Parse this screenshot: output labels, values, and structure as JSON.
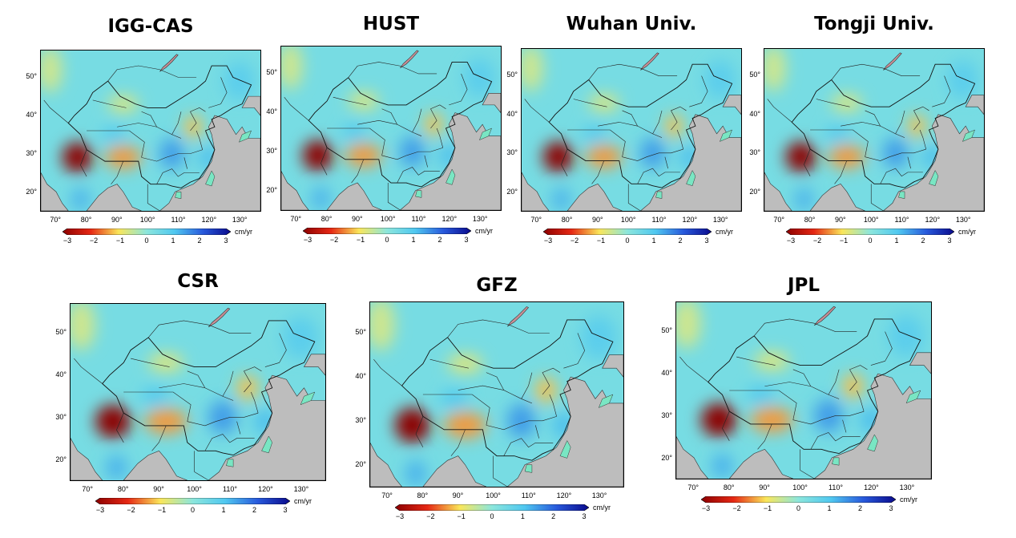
{
  "panels": [
    {
      "title": "IGG-CAS"
    },
    {
      "title": "HUST"
    },
    {
      "title": "Wuhan Univ."
    },
    {
      "title": "Tongji Univ."
    },
    {
      "title": "CSR"
    },
    {
      "title": "GFZ"
    },
    {
      "title": "JPL"
    }
  ],
  "lon_ticks": [
    "70°",
    "80°",
    "90°",
    "100°",
    "110°",
    "120°",
    "130°"
  ],
  "lat_ticks": [
    "50°",
    "40°",
    "30°",
    "20°"
  ],
  "colorbar": {
    "ticks": [
      "−3",
      "−2",
      "−1",
      "0",
      "1",
      "2",
      "3"
    ],
    "unit": "cm/yr",
    "range": [
      -3,
      3
    ]
  },
  "colors": {
    "land_gray": "#bdbdbd",
    "water_green": "#79e6c3",
    "border": "#000000"
  }
}
